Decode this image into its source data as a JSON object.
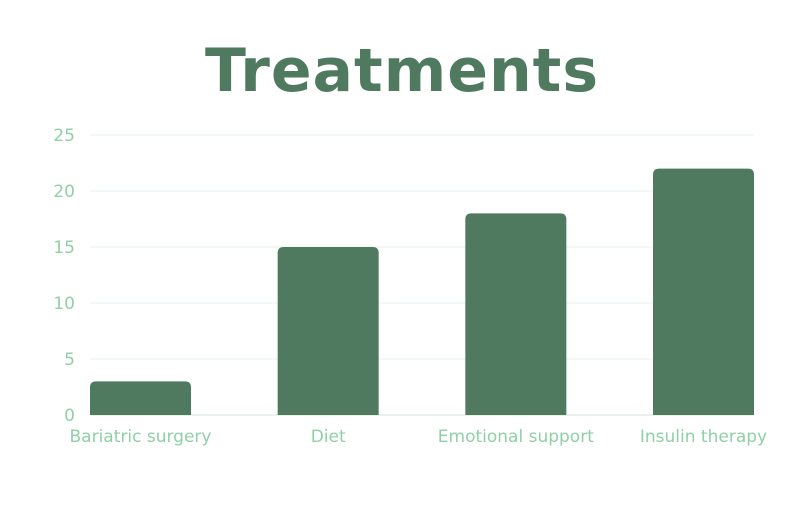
{
  "chart_data": {
    "type": "bar",
    "title": "Treatments",
    "categories": [
      "Bariatric surgery",
      "Diet",
      "Emotional support",
      "Insulin therapy"
    ],
    "values": [
      3,
      15,
      18,
      22
    ],
    "ylim": [
      0,
      25
    ],
    "yticks": [
      0,
      5,
      10,
      15,
      20,
      25
    ],
    "xlabel": "",
    "ylabel": "",
    "grid": true,
    "colors": {
      "bar": "#4f7a5f",
      "tick_text": "#8fd0a6",
      "grid": "#e6f1ea",
      "title": "#4f7a5f"
    }
  }
}
